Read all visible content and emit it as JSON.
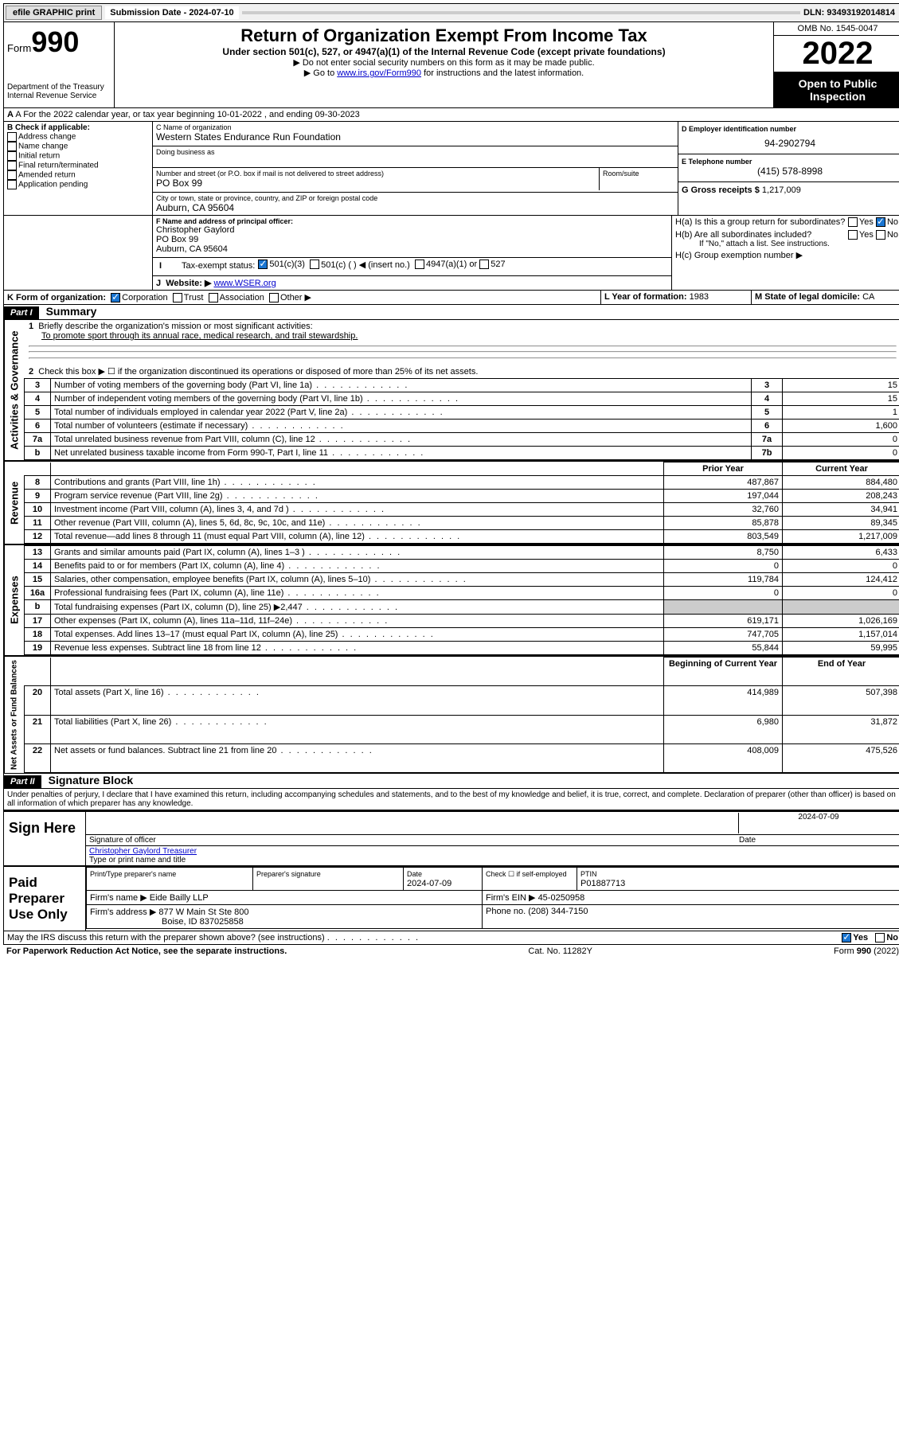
{
  "topbar": {
    "efile": "efile GRAPHIC print",
    "subdate_lbl": "Submission Date - 2024-07-10",
    "dln": "DLN: 93493192014814"
  },
  "header": {
    "form_word": "Form",
    "form_no": "990",
    "title": "Return of Organization Exempt From Income Tax",
    "sub": "Under section 501(c), 527, or 4947(a)(1) of the Internal Revenue Code (except private foundations)",
    "note1": "▶ Do not enter social security numbers on this form as it may be made public.",
    "note2a": "▶ Go to ",
    "note2link": "www.irs.gov/Form990",
    "note2b": " for instructions and the latest information.",
    "dept": "Department of the Treasury",
    "irs": "Internal Revenue Service",
    "omb": "OMB No. 1545-0047",
    "year": "2022",
    "openpub": "Open to Public Inspection"
  },
  "rowA": {
    "text": "A For the 2022 calendar year, or tax year beginning 10-01-2022    , and ending 09-30-2023"
  },
  "sectionB": {
    "title": "B Check if applicable:",
    "items": [
      "Address change",
      "Name change",
      "Initial return",
      "Final return/terminated",
      "Amended return",
      "Application pending"
    ]
  },
  "sectionC": {
    "name_lbl": "C Name of organization",
    "name": "Western States Endurance Run Foundation",
    "dba_lbl": "Doing business as",
    "dba": "",
    "addr_lbl": "Number and street (or P.O. box if mail is not delivered to street address)",
    "room_lbl": "Room/suite",
    "addr": "PO Box 99",
    "city_lbl": "City or town, state or province, country, and ZIP or foreign postal code",
    "city": "Auburn, CA  95604"
  },
  "sectionD": {
    "lbl": "D Employer identification number",
    "val": "94-2902794"
  },
  "sectionE": {
    "lbl": "E Telephone number",
    "val": "(415) 578-8998"
  },
  "sectionG": {
    "lbl": "G Gross receipts $",
    "val": "1,217,009"
  },
  "sectionF": {
    "lbl": "F Name and address of principal officer:",
    "name": "Christopher Gaylord",
    "addr1": "PO Box 99",
    "addr2": "Auburn, CA  95604"
  },
  "sectionH": {
    "a": "H(a)  Is this a group return for subordinates?",
    "b": "H(b)  Are all subordinates included?",
    "bnote": "If \"No,\" attach a list. See instructions.",
    "c": "H(c)  Group exemption number ▶",
    "yes": "Yes",
    "no": "No"
  },
  "sectionI": {
    "lbl": "Tax-exempt status:",
    "opts": [
      "501(c)(3)",
      "501(c) (  ) ◀ (insert no.)",
      "4947(a)(1) or",
      "527"
    ]
  },
  "sectionJ": {
    "lbl": "Website: ▶",
    "val": "www.WSER.org"
  },
  "sectionK": {
    "lbl": "K Form of organization:",
    "opts": [
      "Corporation",
      "Trust",
      "Association",
      "Other ▶"
    ]
  },
  "sectionL": {
    "lbl": "L Year of formation:",
    "val": "1983"
  },
  "sectionM": {
    "lbl": "M State of legal domicile:",
    "val": "CA"
  },
  "partI": {
    "hdr": "Part I",
    "title": "Summary",
    "line1_lbl": "Briefly describe the organization's mission or most significant activities:",
    "line1_val": "To promote sport through its annual race, medical research, and trail stewardship.",
    "line2": "Check this box ▶ ☐  if the organization discontinued its operations or disposed of more than 25% of its net assets."
  },
  "gov_rows": [
    {
      "n": "3",
      "d": "Number of voting members of the governing body (Part VI, line 1a)",
      "box": "3",
      "v": "15"
    },
    {
      "n": "4",
      "d": "Number of independent voting members of the governing body (Part VI, line 1b)",
      "box": "4",
      "v": "15"
    },
    {
      "n": "5",
      "d": "Total number of individuals employed in calendar year 2022 (Part V, line 2a)",
      "box": "5",
      "v": "1"
    },
    {
      "n": "6",
      "d": "Total number of volunteers (estimate if necessary)",
      "box": "6",
      "v": "1,600"
    },
    {
      "n": "7a",
      "d": "Total unrelated business revenue from Part VIII, column (C), line 12",
      "box": "7a",
      "v": "0"
    },
    {
      "n": "b",
      "d": "Net unrelated business taxable income from Form 990-T, Part I, line 11",
      "box": "7b",
      "v": "0"
    }
  ],
  "col_hdr": {
    "prior": "Prior Year",
    "current": "Current Year",
    "boy": "Beginning of Current Year",
    "eoy": "End of Year"
  },
  "rev_rows": [
    {
      "n": "8",
      "d": "Contributions and grants (Part VIII, line 1h)",
      "p": "487,867",
      "c": "884,480"
    },
    {
      "n": "9",
      "d": "Program service revenue (Part VIII, line 2g)",
      "p": "197,044",
      "c": "208,243"
    },
    {
      "n": "10",
      "d": "Investment income (Part VIII, column (A), lines 3, 4, and 7d )",
      "p": "32,760",
      "c": "34,941"
    },
    {
      "n": "11",
      "d": "Other revenue (Part VIII, column (A), lines 5, 6d, 8c, 9c, 10c, and 11e)",
      "p": "85,878",
      "c": "89,345"
    },
    {
      "n": "12",
      "d": "Total revenue—add lines 8 through 11 (must equal Part VIII, column (A), line 12)",
      "p": "803,549",
      "c": "1,217,009"
    }
  ],
  "exp_rows": [
    {
      "n": "13",
      "d": "Grants and similar amounts paid (Part IX, column (A), lines 1–3 )",
      "p": "8,750",
      "c": "6,433"
    },
    {
      "n": "14",
      "d": "Benefits paid to or for members (Part IX, column (A), line 4)",
      "p": "0",
      "c": "0"
    },
    {
      "n": "15",
      "d": "Salaries, other compensation, employee benefits (Part IX, column (A), lines 5–10)",
      "p": "119,784",
      "c": "124,412"
    },
    {
      "n": "16a",
      "d": "Professional fundraising fees (Part IX, column (A), line 11e)",
      "p": "0",
      "c": "0"
    },
    {
      "n": "b",
      "d": "Total fundraising expenses (Part IX, column (D), line 25) ▶2,447",
      "p": "",
      "c": ""
    },
    {
      "n": "17",
      "d": "Other expenses (Part IX, column (A), lines 11a–11d, 11f–24e)",
      "p": "619,171",
      "c": "1,026,169"
    },
    {
      "n": "18",
      "d": "Total expenses. Add lines 13–17 (must equal Part IX, column (A), line 25)",
      "p": "747,705",
      "c": "1,157,014"
    },
    {
      "n": "19",
      "d": "Revenue less expenses. Subtract line 18 from line 12",
      "p": "55,844",
      "c": "59,995"
    }
  ],
  "net_rows": [
    {
      "n": "20",
      "d": "Total assets (Part X, line 16)",
      "p": "414,989",
      "c": "507,398"
    },
    {
      "n": "21",
      "d": "Total liabilities (Part X, line 26)",
      "p": "6,980",
      "c": "31,872"
    },
    {
      "n": "22",
      "d": "Net assets or fund balances. Subtract line 21 from line 20",
      "p": "408,009",
      "c": "475,526"
    }
  ],
  "vlabels": {
    "gov": "Activities & Governance",
    "rev": "Revenue",
    "exp": "Expenses",
    "net": "Net Assets or Fund Balances"
  },
  "partII": {
    "hdr": "Part II",
    "title": "Signature Block",
    "decl": "Under penalties of perjury, I declare that I have examined this return, including accompanying schedules and statements, and to the best of my knowledge and belief, it is true, correct, and complete. Declaration of preparer (other than officer) is based on all information of which preparer has any knowledge."
  },
  "sign": {
    "here": "Sign Here",
    "sig_lbl": "Signature of officer",
    "date_lbl": "Date",
    "date": "2024-07-09",
    "name": "Christopher Gaylord Treasurer",
    "name_lbl": "Type or print name and title"
  },
  "paid": {
    "title": "Paid Preparer Use Only",
    "c1": "Print/Type preparer's name",
    "c2": "Preparer's signature",
    "c3": "Date",
    "c3v": "2024-07-09",
    "c4": "Check ☐ if self-employed",
    "c5": "PTIN",
    "c5v": "P01887713",
    "firm_lbl": "Firm's name    ▶",
    "firm": "Eide Bailly LLP",
    "ein_lbl": "Firm's EIN ▶",
    "ein": "45-0250958",
    "addr_lbl": "Firm's address ▶",
    "addr1": "877 W Main St Ste 800",
    "addr2": "Boise, ID  837025858",
    "phone_lbl": "Phone no.",
    "phone": "(208) 344-7150"
  },
  "mayirs": {
    "q": "May the IRS discuss this return with the preparer shown above? (see instructions)",
    "yes": "Yes",
    "no": "No"
  },
  "footer": {
    "l": "For Paperwork Reduction Act Notice, see the separate instructions.",
    "m": "Cat. No. 11282Y",
    "r": "Form 990 (2022)"
  },
  "colors": {
    "link": "#0000cc",
    "checked": "#1a75d1"
  }
}
